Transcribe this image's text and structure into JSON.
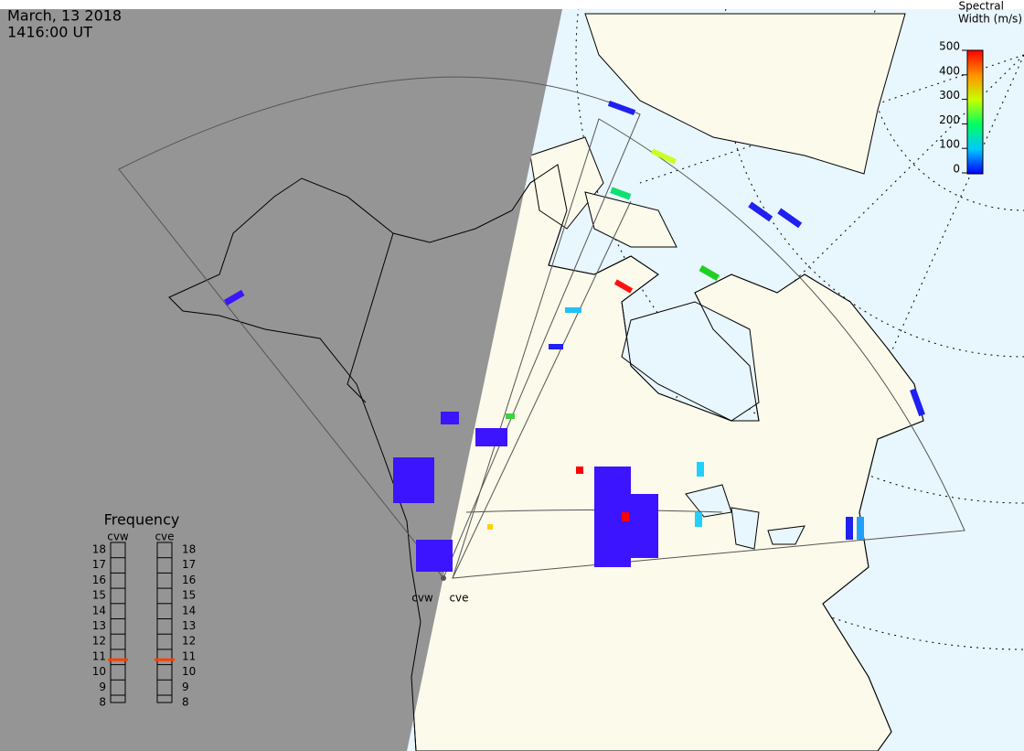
{
  "header": {
    "date": "March, 13 2018",
    "time": "1416:00 UT"
  },
  "color_scale": {
    "title": [
      "Spectral",
      "Width (m/s)"
    ],
    "range": [
      0,
      500
    ],
    "ticks": [
      0,
      100,
      200,
      300,
      400,
      500
    ]
  },
  "frequency": {
    "title": "Frequency",
    "range": [
      8,
      18
    ],
    "ticks": [
      8,
      9,
      10,
      11,
      12,
      13,
      14,
      15,
      16,
      17,
      18
    ],
    "radars": [
      {
        "name": "cvw",
        "value": 10.8
      },
      {
        "name": "cve",
        "value": 10.8
      }
    ]
  },
  "map": {
    "radar_labels": [
      "cvw",
      "cve"
    ]
  }
}
